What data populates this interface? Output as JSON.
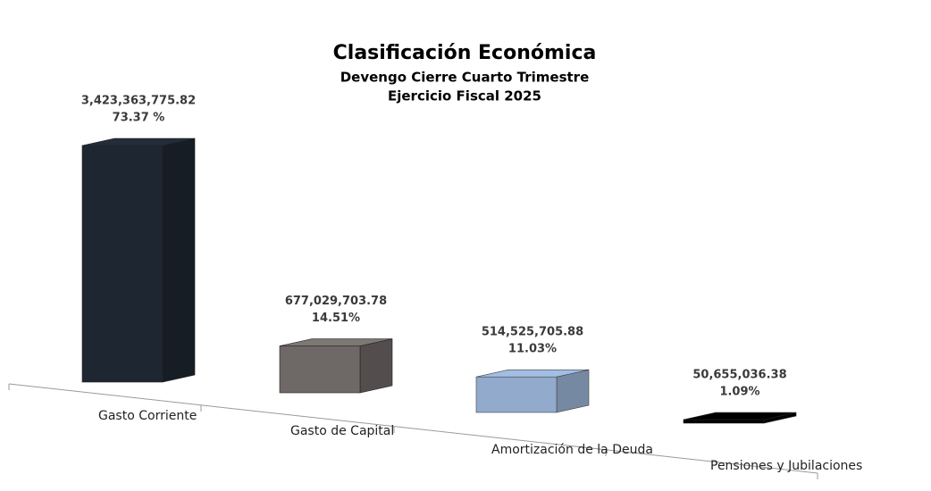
{
  "chart_data": {
    "type": "bar3d",
    "title": "Clasificación Económica",
    "subtitle": [
      "Devengo Cierre Cuarto Trimestre",
      "Ejercicio Fiscal 2025"
    ],
    "categories": [
      "Gasto Corriente",
      "Gasto de Capital",
      "Amortización de la Deuda",
      "Pensiones y Jubilaciones"
    ],
    "values": [
      3423363775.82,
      677029703.78,
      514525705.88,
      50655036.38
    ],
    "value_labels": [
      "3,423,363,775.82",
      "677,029,703.78",
      "514,525,705.88",
      "50,655,036.38"
    ],
    "shares": [
      73.37,
      14.51,
      11.03,
      1.09
    ],
    "share_labels": [
      "73.37 %",
      "14.51%",
      "11.03%",
      "1.09%"
    ],
    "colors": [
      "#1e2631",
      "#6e6866",
      "#7f9cc3",
      "#000000"
    ]
  }
}
